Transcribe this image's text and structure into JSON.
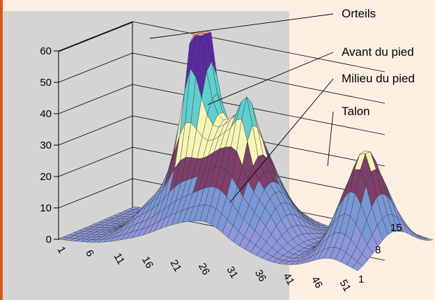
{
  "chart_data": {
    "type": "surface-3d",
    "x_ticks": [
      "1",
      "6",
      "11",
      "16",
      "21",
      "26",
      "31",
      "36",
      "41",
      "46",
      "51"
    ],
    "y_ticks": [
      "1",
      "8",
      "15"
    ],
    "z_ticks": [
      0,
      10,
      20,
      30,
      40,
      50,
      60
    ],
    "zlim": [
      0,
      60
    ],
    "callouts": [
      "Orteils",
      "Avant du pied",
      "Milieu du pied",
      "Talon"
    ],
    "color_bands": [
      {
        "range": [
          0,
          10
        ],
        "color": "#8d97d9"
      },
      {
        "range": [
          10,
          20
        ],
        "color": "#7b98d6"
      },
      {
        "range": [
          20,
          30
        ],
        "color": "#7e3f6b"
      },
      {
        "range": [
          30,
          40
        ],
        "color": "#f7f5b5"
      },
      {
        "range": [
          40,
          50
        ],
        "color": "#5fcfcf"
      },
      {
        "range": [
          50,
          60
        ],
        "color": "#5a2aa0"
      },
      {
        "range": [
          60,
          70
        ],
        "color": "#f59a9a"
      }
    ],
    "peaks": [
      {
        "region": "Orteils",
        "x": 19,
        "z": 62
      },
      {
        "region": "Avant du pied",
        "x": 29,
        "z": 45
      },
      {
        "region": "Milieu du pied",
        "x": 36,
        "z": 12
      },
      {
        "region": "Talon",
        "x": 49,
        "z": 33
      }
    ],
    "plot_background": "#d4d4d4",
    "page_background": "#fdeee2"
  }
}
